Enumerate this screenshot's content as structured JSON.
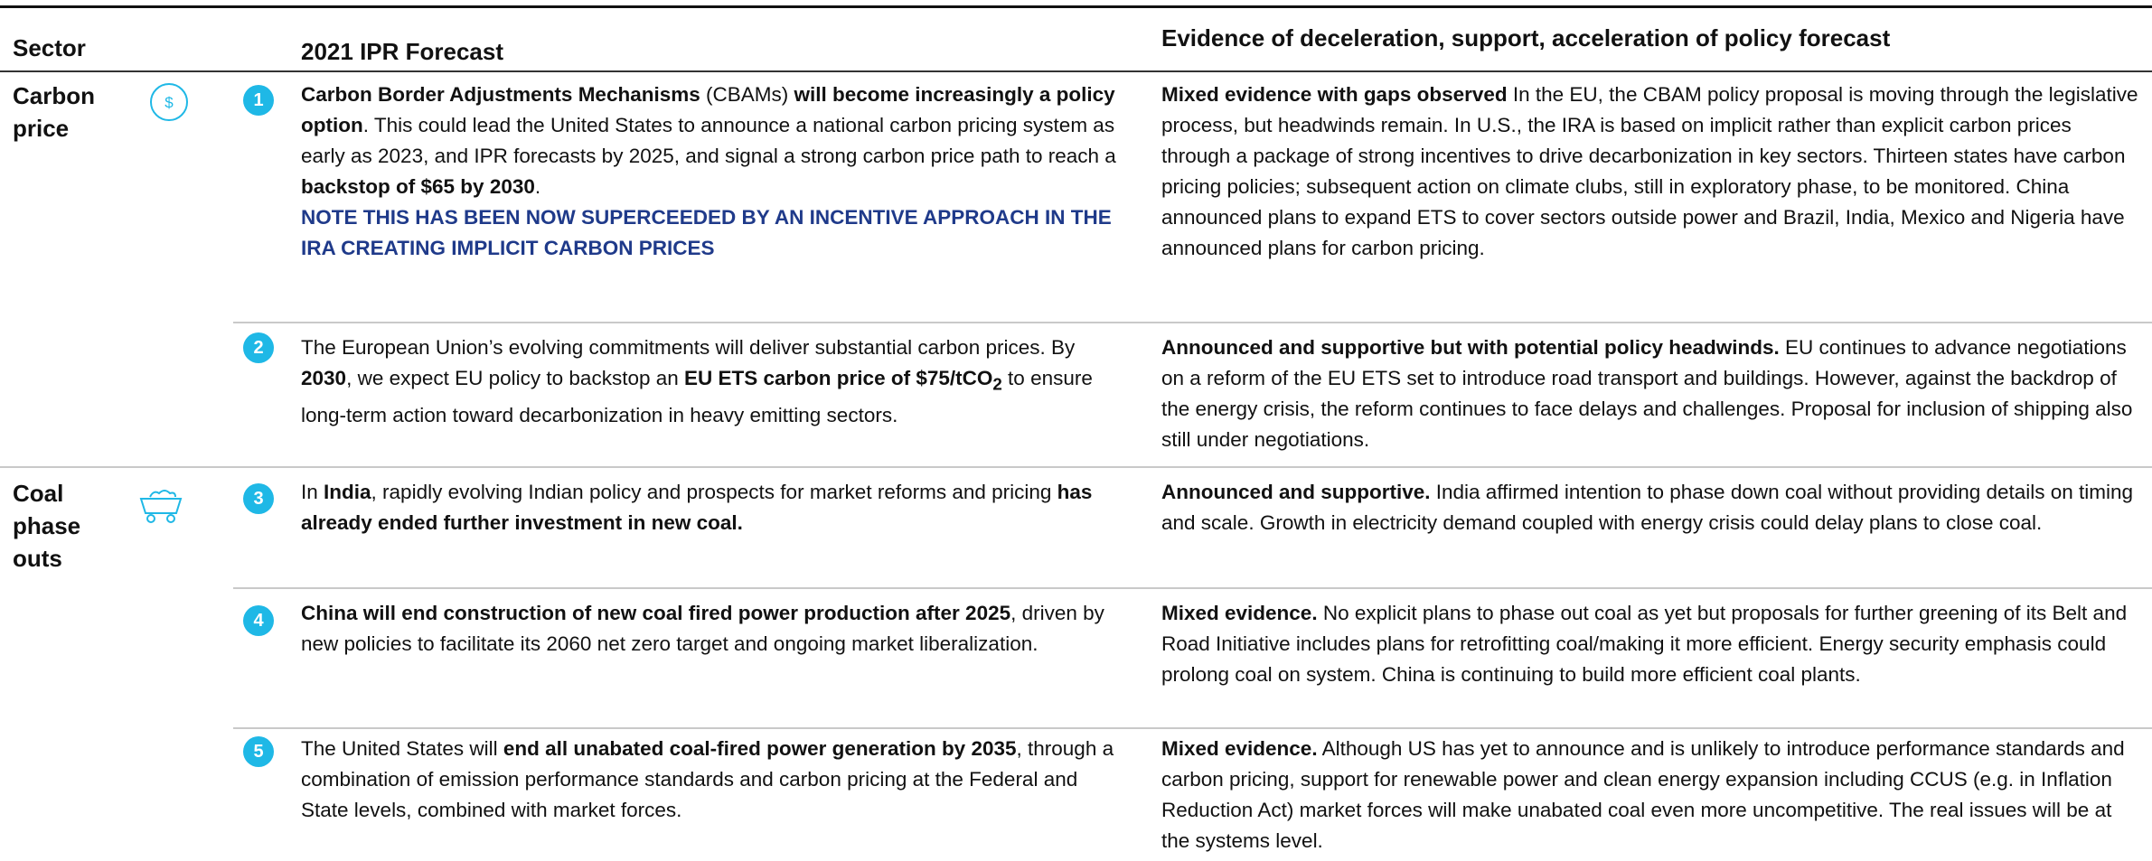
{
  "header": {
    "sector": "Sector",
    "forecast": "2021 IPR Forecast",
    "evidence": "Evidence of deceleration, support, acceleration of policy forecast"
  },
  "rows": [
    {
      "sector": "Carbon price",
      "number": "1",
      "forecast": [
        {
          "text": "Carbon Border Adjustments Mechanisms",
          "bold": true
        },
        {
          "text": " (CBAMs) "
        },
        {
          "text": "will become increasingly a policy option",
          "bold": true
        },
        {
          "text": ". This could lead the United States to announce a national carbon pricing system as early as 2023, and IPR forecasts by 2025, and signal a strong carbon price path to reach a "
        },
        {
          "text": "backstop of $65 by 2030",
          "bold": true
        },
        {
          "text": "."
        }
      ],
      "note": "NOTE THIS HAS BEEN NOW SUPERCEEDED BY AN INCENTIVE APPROACH IN THE IRA CREATING IMPLICIT CARBON PRICES",
      "evidence": [
        {
          "text": "Mixed evidence with gaps observed",
          "bold": true
        },
        {
          "text": " In the EU, the CBAM policy proposal is moving through the legislative process, but headwinds remain. In U.S., the IRA is based on implicit rather than explicit carbon prices through a package of strong incentives to drive decarbonization in key sectors. Thirteen states have carbon pricing policies; subsequent action on climate clubs, still in exploratory phase, to be monitored. China announced plans to expand ETS to cover sectors outside power and Brazil, India, Mexico and Nigeria have announced plans for carbon pricing."
        }
      ]
    },
    {
      "number": "2",
      "forecast": [
        {
          "text": "The European Union’s evolving commitments will deliver substantial carbon prices. By "
        },
        {
          "text": "2030",
          "bold": true
        },
        {
          "text": ", we expect EU policy to backstop an "
        },
        {
          "text": "EU ETS carbon price of $75/tCO",
          "bold": true
        },
        {
          "text": "2",
          "bold": true,
          "sub": true
        },
        {
          "text": " to ensure long-term action toward decarbonization in heavy emitting sectors."
        }
      ],
      "evidence": [
        {
          "text": "Announced and supportive but with potential policy headwinds.",
          "bold": true
        },
        {
          "text": " EU continues to advance negotiations on a reform of the EU ETS set to introduce road transport and buildings. However, against the backdrop of the energy crisis, the reform continues to face delays and challenges. Proposal for inclusion of shipping also still under negotiations."
        }
      ]
    },
    {
      "sector": "Coal phase outs",
      "number": "3",
      "forecast": [
        {
          "text": "In "
        },
        {
          "text": "India",
          "bold": true
        },
        {
          "text": ", rapidly evolving Indian policy and prospects for market reforms and pricing "
        },
        {
          "text": "has already ended further investment in new coal.",
          "bold": true
        }
      ],
      "evidence": [
        {
          "text": "Announced and supportive.",
          "bold": true
        },
        {
          "text": " India affirmed intention to phase down coal without providing details on timing and scale. Growth in electricity demand coupled with energy crisis could delay plans to close coal."
        }
      ]
    },
    {
      "number": "4",
      "forecast": [
        {
          "text": "China will end construction of new coal fired power production after 2025",
          "bold": true
        },
        {
          "text": ", driven by new policies to facilitate its 2060 net zero target and ongoing market liberalization."
        }
      ],
      "evidence": [
        {
          "text": "Mixed evidence.",
          "bold": true
        },
        {
          "text": " No explicit plans to phase out coal as yet but proposals for further greening of its Belt and Road Initiative includes plans for retrofitting coal/making it more efficient. Energy security emphasis could prolong coal on system. China is continuing to build more efficient coal plants."
        }
      ]
    },
    {
      "number": "5",
      "forecast": [
        {
          "text": "The United States will "
        },
        {
          "text": "end all unabated coal-fired power generation by 2035",
          "bold": true
        },
        {
          "text": ", through a combination of emission performance standards and carbon pricing at the Federal and State levels, combined with market forces."
        }
      ],
      "evidence": [
        {
          "text": "Mixed evidence.",
          "bold": true
        },
        {
          "text": " Although US has yet to announce and is unlikely to introduce performance standards and carbon pricing, support for renewable power and clean energy expansion including CCUS (e.g. in Inflation Reduction Act) market forces will make unabated coal even more uncompetitive. The real issues will be at the systems level."
        }
      ]
    }
  ]
}
